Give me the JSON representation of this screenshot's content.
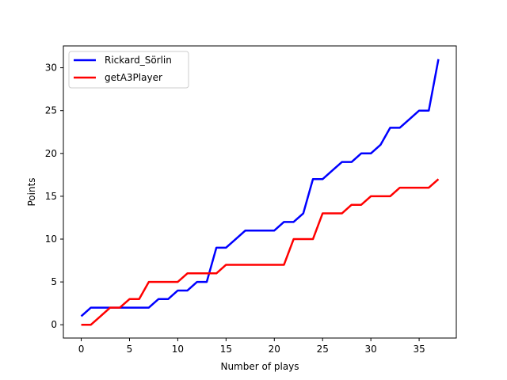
{
  "chart_data": {
    "type": "line",
    "title": "",
    "xlabel": "Number of plays",
    "ylabel": "Points",
    "xlim": [
      -1.85,
      38.85
    ],
    "ylim": [
      -1.55,
      32.55
    ],
    "xticks": [
      0,
      5,
      10,
      15,
      20,
      25,
      30,
      35
    ],
    "yticks": [
      0,
      5,
      10,
      15,
      20,
      25,
      30
    ],
    "grid": false,
    "legend_position": "top-left",
    "x": [
      0,
      1,
      2,
      3,
      4,
      5,
      6,
      7,
      8,
      9,
      10,
      11,
      12,
      13,
      14,
      15,
      16,
      17,
      18,
      19,
      20,
      21,
      22,
      23,
      24,
      25,
      26,
      27,
      28,
      29,
      30,
      31,
      32,
      33,
      34,
      35,
      36,
      37
    ],
    "series": [
      {
        "name": "Rickard_Sörlin",
        "color": "#0000ff",
        "values": [
          1,
          2,
          2,
          2,
          2,
          2,
          2,
          2,
          3,
          3,
          4,
          4,
          5,
          5,
          9,
          9,
          10,
          11,
          11,
          11,
          11,
          12,
          12,
          13,
          17,
          17,
          18,
          19,
          19,
          20,
          20,
          21,
          23,
          23,
          24,
          25,
          25,
          31
        ]
      },
      {
        "name": "getA3Player",
        "color": "#ff0000",
        "values": [
          0,
          0,
          1,
          2,
          2,
          3,
          3,
          5,
          5,
          5,
          5,
          6,
          6,
          6,
          6,
          7,
          7,
          7,
          7,
          7,
          7,
          7,
          10,
          10,
          10,
          13,
          13,
          13,
          14,
          14,
          15,
          15,
          15,
          16,
          16,
          16,
          16,
          17
        ]
      }
    ]
  }
}
